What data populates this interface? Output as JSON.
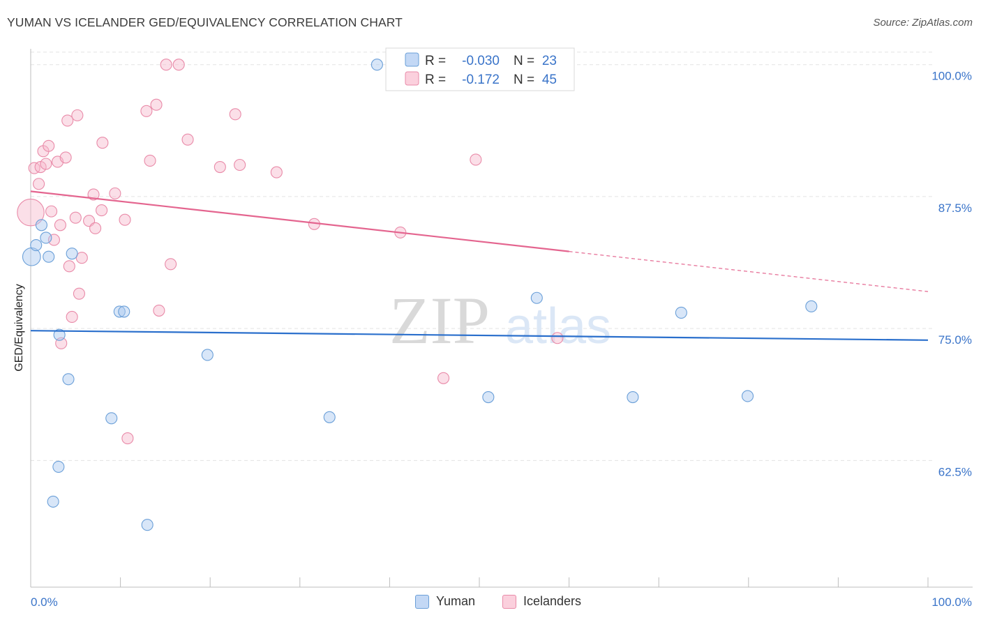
{
  "header": {
    "title": "YUMAN VS ICELANDER GED/EQUIVALENCY CORRELATION CHART",
    "source": "Source: ZipAtlas.com"
  },
  "watermark": {
    "zip": "ZIP",
    "atlas": "atlas"
  },
  "stats_legend": {
    "rows": [
      {
        "r_label": "R =",
        "r_value": "-0.030",
        "n_label": "N =",
        "n_value": "23"
      },
      {
        "r_label": "R =",
        "r_value": "-0.172",
        "n_label": "N =",
        "n_value": "45"
      }
    ]
  },
  "colors": {
    "yuman": "#a9c8f0",
    "yuman_stroke": "#6a9fd8",
    "yuman_line": "#2a6fcc",
    "icelanders": "#f7b9cc",
    "icelanders_stroke": "#e98aa8",
    "icelanders_line": "#e4658f",
    "axis_text": "#3a74c9"
  },
  "chart_data": {
    "type": "scatter",
    "title": "YUMAN VS ICELANDER GED/EQUIVALENCY CORRELATION CHART",
    "xlabel": "",
    "ylabel": "GED/Equivalency",
    "xlim": [
      0,
      100
    ],
    "ylim": [
      50.5,
      101.5
    ],
    "x_tick_labels": [
      "0.0%",
      "100.0%"
    ],
    "y_ticks": [
      100.0,
      87.5,
      75.0,
      62.5
    ],
    "y_tick_labels": [
      "100.0%",
      "87.5%",
      "75.0%",
      "62.5%"
    ],
    "grid": true,
    "legend_position": "bottom",
    "series": [
      {
        "name": "Yuman",
        "r": -0.03,
        "n": 23,
        "trend": {
          "x0": 0,
          "y0": 74.8,
          "x1": 100,
          "y1": 73.9
        },
        "points": [
          [
            0.1,
            81.8,
            1.6
          ],
          [
            0.6,
            82.9,
            1
          ],
          [
            1.2,
            84.8,
            1
          ],
          [
            1.7,
            83.6,
            1
          ],
          [
            2.0,
            81.8,
            1
          ],
          [
            4.6,
            82.1,
            1
          ],
          [
            3.2,
            74.4,
            1
          ],
          [
            4.2,
            70.2,
            1
          ],
          [
            3.1,
            61.9,
            1
          ],
          [
            2.5,
            58.6,
            1
          ],
          [
            9.9,
            76.6,
            1
          ],
          [
            10.4,
            76.6,
            1
          ],
          [
            9.0,
            66.5,
            1
          ],
          [
            13.0,
            56.4,
            1
          ],
          [
            19.7,
            72.5,
            1
          ],
          [
            33.3,
            66.6,
            1
          ],
          [
            38.6,
            100.0,
            1
          ],
          [
            51.0,
            68.5,
            1
          ],
          [
            56.4,
            77.9,
            1
          ],
          [
            67.1,
            68.5,
            1
          ],
          [
            72.5,
            76.5,
            1
          ],
          [
            79.9,
            68.6,
            1
          ],
          [
            87.0,
            77.1,
            1
          ]
        ]
      },
      {
        "name": "Icelanders",
        "r": -0.172,
        "n": 45,
        "trend": {
          "x0": 0,
          "y0": 88.0,
          "x1": 60,
          "y1": 82.3,
          "dash_x1": 100,
          "dash_y1": 78.5
        },
        "points": [
          [
            0.0,
            86.0,
            2.4
          ],
          [
            0.4,
            90.2,
            1
          ],
          [
            0.9,
            88.7,
            1
          ],
          [
            1.1,
            90.3,
            1
          ],
          [
            1.4,
            91.8,
            1
          ],
          [
            1.7,
            90.6,
            1
          ],
          [
            2.0,
            92.3,
            1
          ],
          [
            2.3,
            86.1,
            1
          ],
          [
            2.6,
            83.4,
            1
          ],
          [
            3.0,
            90.8,
            1
          ],
          [
            3.3,
            84.8,
            1
          ],
          [
            3.4,
            73.6,
            1
          ],
          [
            3.9,
            91.2,
            1
          ],
          [
            4.1,
            94.7,
            1
          ],
          [
            4.3,
            80.9,
            1
          ],
          [
            4.6,
            76.1,
            1
          ],
          [
            5.0,
            85.5,
            1
          ],
          [
            5.2,
            95.2,
            1
          ],
          [
            5.4,
            78.3,
            1
          ],
          [
            5.7,
            81.7,
            1
          ],
          [
            6.5,
            85.2,
            1
          ],
          [
            7.0,
            87.7,
            1
          ],
          [
            7.2,
            84.5,
            1
          ],
          [
            7.9,
            86.2,
            1
          ],
          [
            8.0,
            92.6,
            1
          ],
          [
            9.4,
            87.8,
            1
          ],
          [
            10.5,
            85.3,
            1
          ],
          [
            10.8,
            64.6,
            1
          ],
          [
            12.9,
            95.6,
            1
          ],
          [
            13.3,
            90.9,
            1
          ],
          [
            14.0,
            96.2,
            1
          ],
          [
            14.3,
            76.7,
            1
          ],
          [
            15.1,
            100.0,
            1
          ],
          [
            15.6,
            81.1,
            1
          ],
          [
            16.5,
            100.0,
            1
          ],
          [
            17.5,
            92.9,
            1
          ],
          [
            21.1,
            90.3,
            1
          ],
          [
            22.8,
            95.3,
            1
          ],
          [
            23.3,
            90.5,
            1
          ],
          [
            27.4,
            89.8,
            1
          ],
          [
            31.6,
            84.9,
            1
          ],
          [
            41.2,
            84.1,
            1
          ],
          [
            46.0,
            70.3,
            1
          ],
          [
            49.6,
            91.0,
            1
          ],
          [
            58.7,
            74.1,
            1
          ]
        ]
      }
    ]
  },
  "bottom_legend": {
    "items": [
      "Yuman",
      "Icelanders"
    ]
  }
}
